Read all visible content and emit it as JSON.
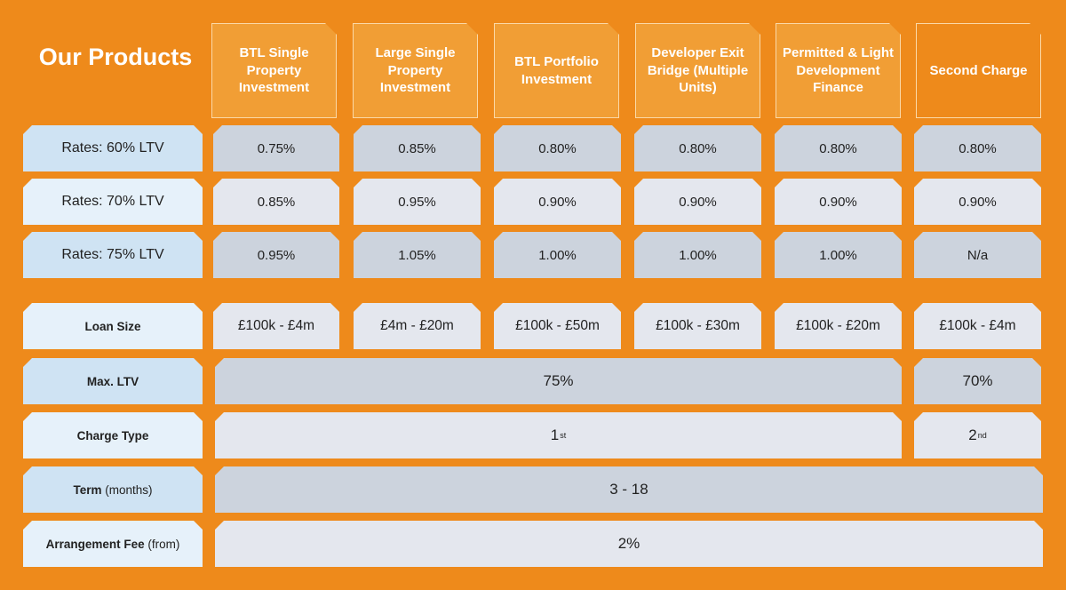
{
  "title": "Our Products",
  "products": [
    "BTL Single Property Investment",
    "Large Single Property Investment",
    "BTL Portfolio Investment",
    "Developer Exit Bridge (Multiple Units)",
    "Permitted & Light Development Finance",
    "Second Charge"
  ],
  "rows": {
    "rates60": {
      "label": "Rates: 60% LTV",
      "values": [
        "0.75%",
        "0.85%",
        "0.80%",
        "0.80%",
        "0.80%",
        "0.80%"
      ]
    },
    "rates70": {
      "label": "Rates: 70% LTV",
      "values": [
        "0.85%",
        "0.95%",
        "0.90%",
        "0.90%",
        "0.90%",
        "0.90%"
      ]
    },
    "rates75": {
      "label": "Rates: 75% LTV",
      "values": [
        "0.95%",
        "1.05%",
        "1.00%",
        "1.00%",
        "1.00%",
        "N/a"
      ]
    },
    "loan_size": {
      "label": "Loan Size",
      "values": [
        "£100k - £4m",
        "£4m - £20m",
        "£100k - £50m",
        "£100k - £30m",
        "£100k - £20m",
        "£100k - £4m"
      ]
    },
    "max_ltv": {
      "label": "Max. LTV",
      "main": "75%",
      "second": "70%"
    },
    "charge_type": {
      "label": "Charge Type",
      "main_num": "1",
      "main_sup": "st",
      "second_num": "2",
      "second_sup": "nd"
    },
    "term": {
      "label": "Term",
      "label_suffix": " (months)",
      "value": "3 - 18"
    },
    "arrangement_fee": {
      "label": "Arrangement Fee",
      "label_suffix": " (from)",
      "value": "2%"
    }
  }
}
